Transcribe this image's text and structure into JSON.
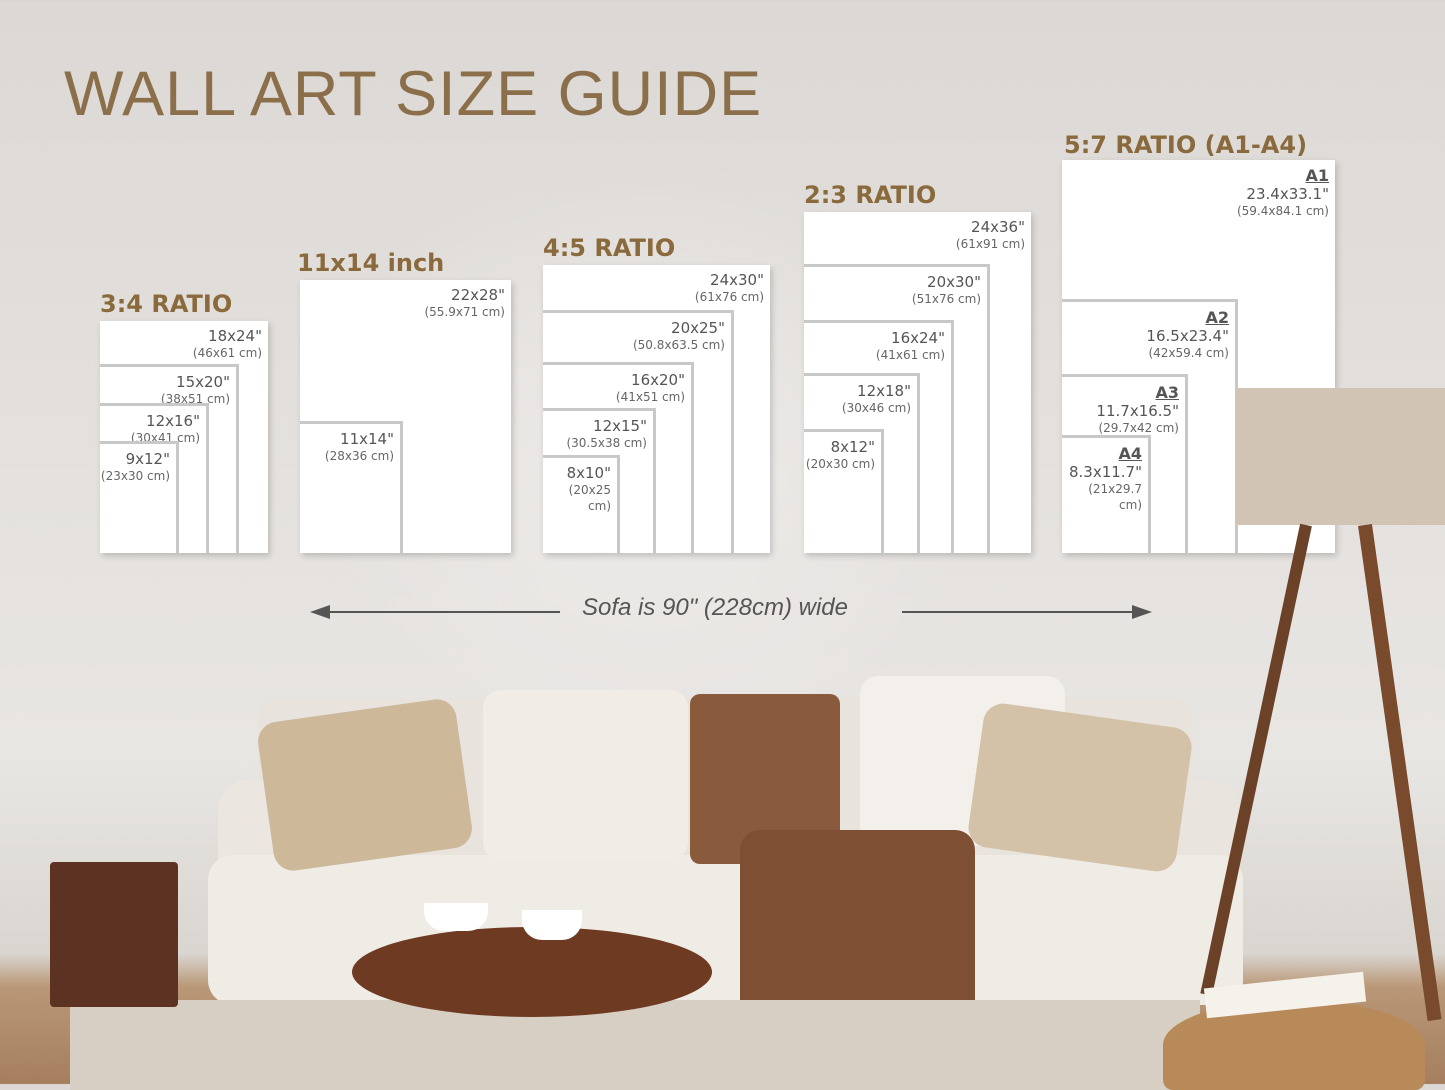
{
  "title": "WALL ART SIZE GUIDE",
  "groups": [
    {
      "heading": "3:4 RATIO",
      "sizes": [
        {
          "in": "18x24\"",
          "cm": "(46x61 cm)"
        },
        {
          "in": "15x20\"",
          "cm": "(38x51 cm)"
        },
        {
          "in": "12x16\"",
          "cm": "(30x41 cm)"
        },
        {
          "in": "9x12\"",
          "cm": "(23x30 cm)"
        }
      ]
    },
    {
      "heading": "11x14 inch",
      "sizes": [
        {
          "in": "22x28\"",
          "cm": "(55.9x71 cm)"
        },
        {
          "in": "11x14\"",
          "cm": "(28x36 cm)"
        }
      ]
    },
    {
      "heading": "4:5 RATIO",
      "sizes": [
        {
          "in": "24x30\"",
          "cm": "(61x76 cm)"
        },
        {
          "in": "20x25\"",
          "cm": "(50.8x63.5 cm)"
        },
        {
          "in": "16x20\"",
          "cm": "(41x51 cm)"
        },
        {
          "in": "12x15\"",
          "cm": "(30.5x38 cm)"
        },
        {
          "in": "8x10\"",
          "cm": "(20x25 cm)"
        }
      ]
    },
    {
      "heading": "2:3 RATIO",
      "sizes": [
        {
          "in": "24x36\"",
          "cm": "(61x91 cm)"
        },
        {
          "in": "20x30\"",
          "cm": "(51x76 cm)"
        },
        {
          "in": "16x24\"",
          "cm": "(41x61 cm)"
        },
        {
          "in": "12x18\"",
          "cm": "(30x46 cm)"
        },
        {
          "in": "8x12\"",
          "cm": "(20x30 cm)"
        }
      ]
    },
    {
      "heading": "5:7 RATIO (A1-A4)",
      "sizes": [
        {
          "code": "A1",
          "in": "23.4x33.1\"",
          "cm": "(59.4x84.1 cm)"
        },
        {
          "code": "A2",
          "in": "16.5x23.4\"",
          "cm": "(42x59.4 cm)"
        },
        {
          "code": "A3",
          "in": "11.7x16.5\"",
          "cm": "(29.7x42 cm)"
        },
        {
          "code": "A4",
          "in": "8.3x11.7\"",
          "cm": "(21x29.7 cm)"
        }
      ]
    }
  ],
  "sofa_note": "Sofa is 90\" (228cm) wide",
  "colors": {
    "heading": "#8a6a3c",
    "title": "#8a6f4a",
    "frame_border": "#c8c8c8"
  }
}
